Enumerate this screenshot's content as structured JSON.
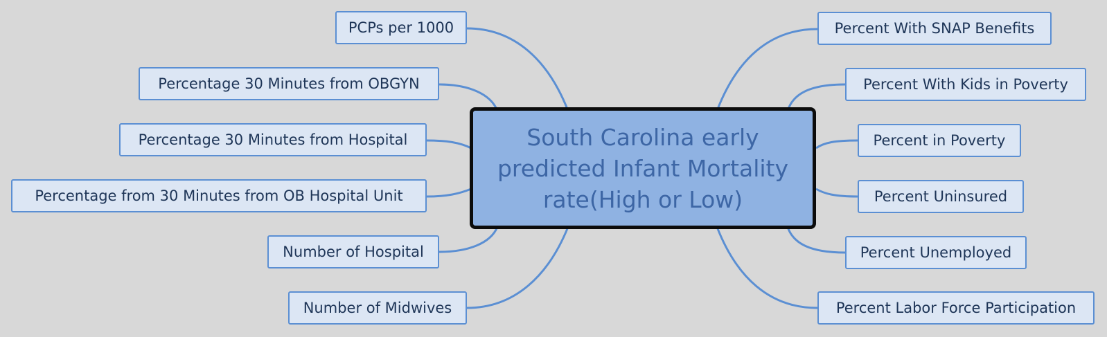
{
  "central": {
    "title": "South Carolina early predicted Infant Mortality rate(High or Low)"
  },
  "left_nodes": [
    {
      "id": "pcps",
      "label": "PCPs per 1000"
    },
    {
      "id": "obgyn",
      "label": "Percentage 30 Minutes from OBGYN"
    },
    {
      "id": "hospital",
      "label": "Percentage 30 Minutes from Hospital"
    },
    {
      "id": "ob-unit",
      "label": "Percentage from 30 Minutes from OB Hospital Unit"
    },
    {
      "id": "num-hospital",
      "label": "Number of Hospital"
    },
    {
      "id": "midwives",
      "label": "Number of Midwives"
    }
  ],
  "right_nodes": [
    {
      "id": "snap",
      "label": "Percent With SNAP Benefits"
    },
    {
      "id": "kids-poverty",
      "label": "Percent With Kids in Poverty"
    },
    {
      "id": "poverty",
      "label": "Percent in Poverty"
    },
    {
      "id": "uninsured",
      "label": "Percent Uninsured"
    },
    {
      "id": "unemployed",
      "label": "Percent Unemployed"
    },
    {
      "id": "labor-force",
      "label": "Percent Labor Force Participation"
    }
  ],
  "colors": {
    "background": "#d8d8d8",
    "connector": "#5b8fd3",
    "node_fill": "#dce6f4",
    "node_text": "#1e3557",
    "central_fill": "#8fb2e2",
    "central_text": "#3d66a5",
    "central_border": "#0c0c0c"
  }
}
